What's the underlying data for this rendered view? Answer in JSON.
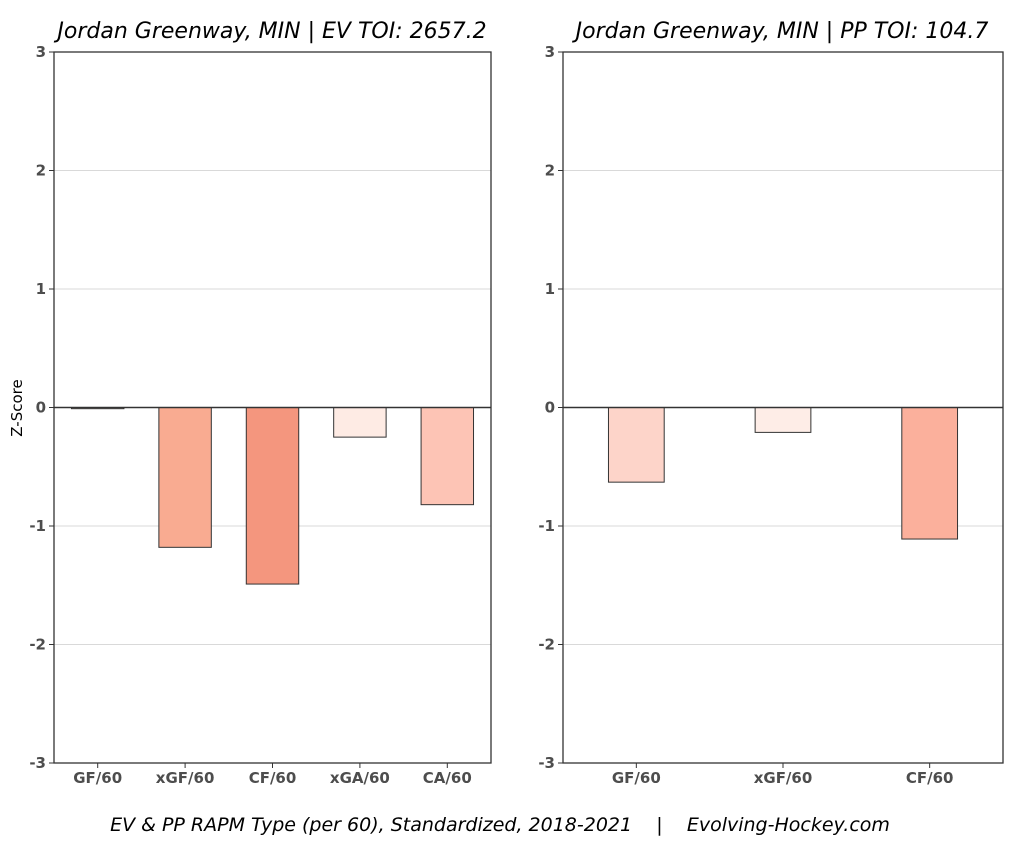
{
  "ylabel": "Z-Score",
  "caption": "EV & PP RAPM Type (per 60), Standardized, 2018-2021    |    Evolving-Hockey.com",
  "chart_data": [
    {
      "type": "bar",
      "title": "Jordan Greenway, MIN  |  EV TOI: 2657.2",
      "categories": [
        "GF/60",
        "xGF/60",
        "CF/60",
        "xGA/60",
        "CA/60"
      ],
      "values": [
        -0.01,
        -1.18,
        -1.49,
        -0.25,
        -0.82
      ],
      "colors": [
        "#f9d8cd",
        "#f9ab91",
        "#f4967e",
        "#feebe4",
        "#fdc4b5"
      ],
      "ylabel": "Z-Score",
      "ylim": [
        -3,
        3
      ],
      "yticks": [
        3,
        2,
        1,
        0,
        -1,
        -2,
        -3
      ],
      "grid": true
    },
    {
      "type": "bar",
      "title": "Jordan Greenway, MIN  |  PP TOI: 104.7",
      "categories": [
        "GF/60",
        "xGF/60",
        "CF/60"
      ],
      "values": [
        -0.63,
        -0.21,
        -1.11
      ],
      "colors": [
        "#fdd4c9",
        "#feede7",
        "#fbb09c"
      ],
      "ylim": [
        -3,
        3
      ],
      "yticks": [
        3,
        2,
        1,
        0,
        -1,
        -2,
        -3
      ],
      "grid": true
    }
  ]
}
